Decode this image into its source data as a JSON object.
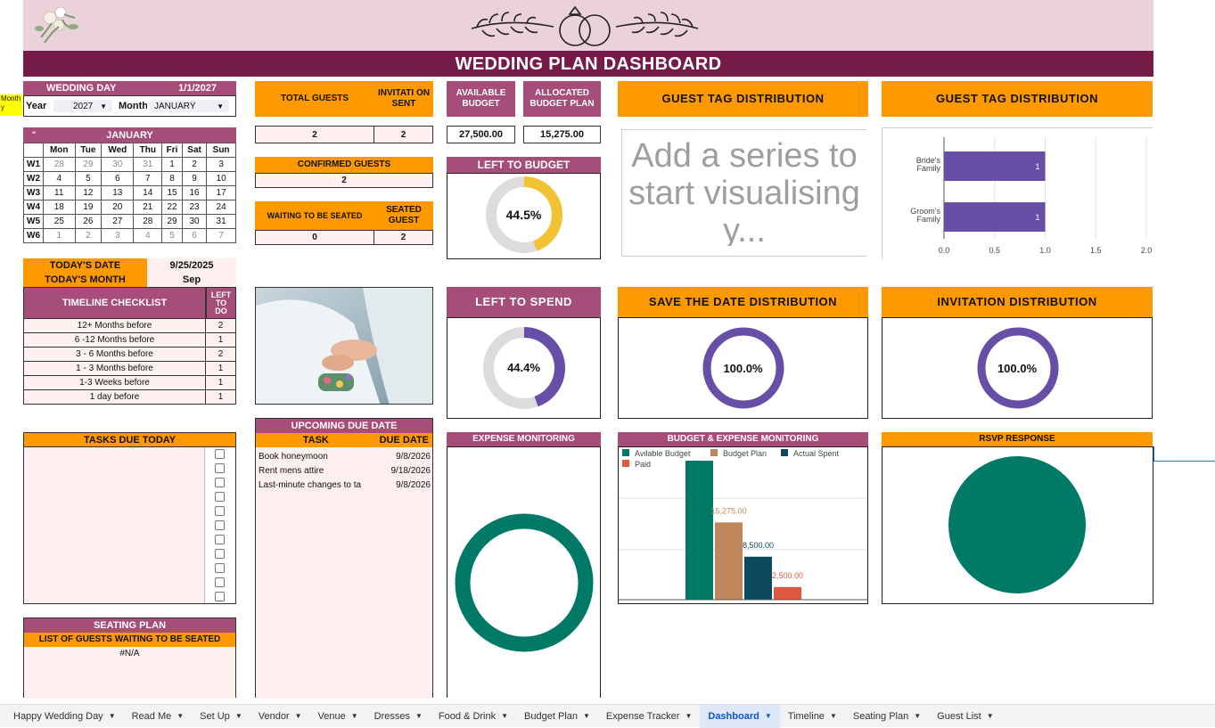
{
  "header": {
    "title": "WEDDING PLAN DASHBOARD",
    "colors": {
      "banner": "#ead1dc",
      "title": "#741b47",
      "plum": "#a64d79",
      "orange": "#ff9900",
      "teal": "#007a67",
      "purple": "#674ea7"
    }
  },
  "side_note": "Month\ny",
  "wedding": {
    "day_label": "WEDDING DAY",
    "day_value": "1/1/2027",
    "year_label": "Year",
    "year_value": "2027",
    "month_label": "Month",
    "month_value": "JANUARY"
  },
  "calendar": {
    "corner": "\"",
    "month": "JANUARY",
    "days": [
      "Mon",
      "Tue",
      "Wed",
      "Thu",
      "Fri",
      "Sat",
      "Sun"
    ],
    "weeks": [
      {
        "label": "W1",
        "dates": [
          "28",
          "29",
          "30",
          "31",
          "1",
          "2",
          "3"
        ],
        "muted": [
          0,
          1,
          2,
          3
        ]
      },
      {
        "label": "W2",
        "dates": [
          "4",
          "5",
          "6",
          "7",
          "8",
          "9",
          "10"
        ],
        "muted": []
      },
      {
        "label": "W3",
        "dates": [
          "11",
          "12",
          "13",
          "14",
          "15",
          "16",
          "17"
        ],
        "muted": []
      },
      {
        "label": "W4",
        "dates": [
          "18",
          "19",
          "20",
          "21",
          "22",
          "23",
          "24"
        ],
        "muted": []
      },
      {
        "label": "W5",
        "dates": [
          "25",
          "26",
          "27",
          "28",
          "29",
          "30",
          "31"
        ],
        "muted": []
      },
      {
        "label": "W6",
        "dates": [
          "1",
          "2",
          "3",
          "4",
          "5",
          "6",
          "7"
        ],
        "muted": [
          0,
          1,
          2,
          3,
          4,
          5,
          6
        ]
      }
    ]
  },
  "today": {
    "date_label": "TODAY'S DATE",
    "date_value": "9/25/2025",
    "month_label": "TODAY'S MONTH",
    "month_value": "Sep"
  },
  "timeline": {
    "title": "TIMELINE CHECKLIST",
    "todo_label": "LEFT TO DO",
    "rows": [
      {
        "label": "12+ Months before",
        "value": "2"
      },
      {
        "label": "6 -12 Months before",
        "value": "1"
      },
      {
        "label": "3 - 6 Months before",
        "value": "2"
      },
      {
        "label": "1 - 3 Months before",
        "value": "1"
      },
      {
        "label": "1-3 Weeks before",
        "value": "1"
      },
      {
        "label": "1 day before",
        "value": "1"
      }
    ]
  },
  "tasks_today": {
    "title": "TASKS DUE TODAY",
    "checkbox_count": 11
  },
  "seating": {
    "title": "SEATING PLAN",
    "subtitle": "LIST OF GUESTS WAITING TO BE SEATED",
    "value": "#N/A"
  },
  "guests": {
    "total_label": "TOTAL GUESTS",
    "total_value": "2",
    "invitation_label": "INVITATI ON SENT",
    "invitation_value": "2",
    "confirmed_label": "CONFIRMED GUESTS",
    "confirmed_value": "2",
    "waiting_label": "WAITING TO BE SEATED",
    "waiting_value": "0",
    "seated_label": "SEATED GUEST",
    "seated_value": "2"
  },
  "budget": {
    "available_label": "AVAILABLE BUDGET",
    "available_value": "27,500.00",
    "allocated_label": "ALLOCATED BUDGET PLAN",
    "allocated_value": "15,275.00"
  },
  "left_to_budget": {
    "title": "LEFT TO BUDGET",
    "percent": 44.5,
    "label": "44.5%"
  },
  "left_to_spend": {
    "title": "LEFT TO SPEND",
    "percent": 44.4,
    "label": "44.4%"
  },
  "guest_tag_empty": {
    "title": "GUEST TAG DISTRIBUTION",
    "message": "Add a series to start visualising y..."
  },
  "save_the_date": {
    "title": "SAVE THE DATE DISTRIBUTION",
    "percent": 100,
    "label": "100.0%"
  },
  "invitation_dist": {
    "title": "INVITATION DISTRIBUTION",
    "percent": 100,
    "label": "100.0%"
  },
  "upcoming": {
    "title": "UPCOMING DUE DATE",
    "task_header": "TASK",
    "date_header": "DUE DATE",
    "rows": [
      {
        "task": "Book honeymoon",
        "date": "9/8/2026"
      },
      {
        "task": "Rent mens attire",
        "date": "9/18/2026"
      },
      {
        "task": "Last-minute changes to ta",
        "date": "9/8/2026"
      }
    ]
  },
  "expense_monitoring": {
    "title": "EXPENSE MONITORING"
  },
  "rsvp": {
    "title": "RSVP RESPONSE"
  },
  "chart_data": [
    {
      "type": "bar",
      "title": "GUEST TAG DISTRIBUTION",
      "orientation": "horizontal",
      "categories": [
        "Bride's Family",
        "Groom's Family"
      ],
      "values": [
        1,
        1
      ],
      "xlim": [
        0,
        2
      ],
      "ticks": [
        "0.0",
        "0.5",
        "1.0",
        "1.5",
        "2.0"
      ],
      "color": "#674ea7"
    },
    {
      "type": "bar",
      "title": "BUDGET & EXPENSE MONITORING",
      "legend_position": "top",
      "series": [
        {
          "name": "Avilable Budget",
          "value": 27500,
          "label": "",
          "color": "#007a67"
        },
        {
          "name": "Budget Plan",
          "value": 15275,
          "label": "15,275.00",
          "color": "#c0885a"
        },
        {
          "name": "Actual Spent",
          "value": 8500,
          "label": "8,500.00",
          "color": "#0b4a5e"
        },
        {
          "name": "Paid",
          "value": 2500,
          "label": "2,500.00",
          "color": "#e0583f"
        }
      ],
      "ylim": [
        0,
        27500
      ]
    },
    {
      "type": "pie",
      "title": "EXPENSE MONITORING",
      "donut": true,
      "values": [
        100
      ],
      "color": "#007a67"
    },
    {
      "type": "pie",
      "title": "RSVP RESPONSE",
      "values": [
        100
      ],
      "color": "#007a67"
    }
  ],
  "tabs": [
    {
      "label": "Happy Wedding Day",
      "active": false
    },
    {
      "label": "Read Me",
      "active": false
    },
    {
      "label": "Set Up",
      "active": false
    },
    {
      "label": "Vendor",
      "active": false
    },
    {
      "label": "Venue",
      "active": false
    },
    {
      "label": "Dresses",
      "active": false
    },
    {
      "label": "Food & Drink",
      "active": false
    },
    {
      "label": "Budget Plan",
      "active": false
    },
    {
      "label": "Expense Tracker",
      "active": false
    },
    {
      "label": "Dashboard",
      "active": true
    },
    {
      "label": "Timeline",
      "active": false
    },
    {
      "label": "Seating Plan",
      "active": false
    },
    {
      "label": "Guest List",
      "active": false
    }
  ]
}
